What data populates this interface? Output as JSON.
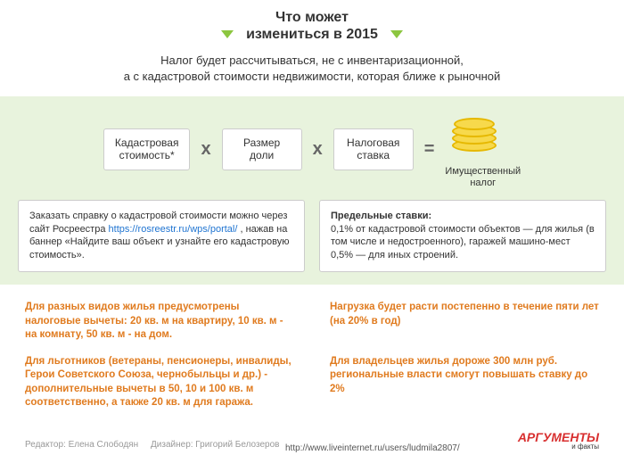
{
  "header": {
    "title_l1": "Что может",
    "title_l2": "измениться в 2015"
  },
  "subtitle": "Налог будет рассчитываться, не с инвентаризационной,\nа с кадастровой стоимости недвижимости, которая ближе к рыночной",
  "formula": {
    "box1_l1": "Кадастровая",
    "box1_l2": "стоимость*",
    "box2_l1": "Размер",
    "box2_l2": "доли",
    "box3_l1": "Налоговая",
    "box3_l2": "ставка",
    "op_mul": "x",
    "op_eq": "=",
    "result_l1": "Имущественный",
    "result_l2": "налог"
  },
  "notes": {
    "left_pre": "Заказать справку о кадастровой стоимости можно через сайт Росреестра ",
    "left_link": "https://rosreestr.ru/wps/portal/",
    "left_post": " , нажав на баннер «Найдите ваш объект и узнайте его кадастровую стоимость».",
    "right_head": "Предельные ставки:",
    "right_line1": "0,1% от кадастровой стоимости объектов — для жилья (в том числе и недостроенного), гаражей машино-мест",
    "right_line2": "0,5% — для иных строений."
  },
  "bottom": {
    "r1c1": "Для разных видов жилья предусмотрены налоговые вычеты: 20 кв. м на квартиру, 10 кв. м - на комнату, 50 кв. м - на дом.",
    "r1c2": "Нагрузка будет расти постепенно в течение пяти лет (на 20% в год)",
    "r2c1": "Для льготников (ветераны, пенсионеры, инвалиды, Герои Советского Союза, чернобыльцы и др.) - дополнительные вычеты в 50, 10 и 100 кв. м соответственно, а также 20 кв. м для гаража.",
    "r2c2": "Для владельцев жилья дороже 300 млн руб. региональные власти смогут повышать ставку до 2%"
  },
  "footer": {
    "editor": "Редактор: Елена Слободян",
    "designer": "Дизайнер: Григорий Белозеров",
    "brand_top": "АРГУМЕНТЫ",
    "brand_sub": "и факты",
    "url": "http://www.liveinternet.ru/users/ludmila2807/"
  },
  "colors": {
    "accent_green": "#8cc63f",
    "band_bg": "#e8f3dd",
    "orange": "#e07b1f",
    "brand_red": "#d82f2f"
  }
}
